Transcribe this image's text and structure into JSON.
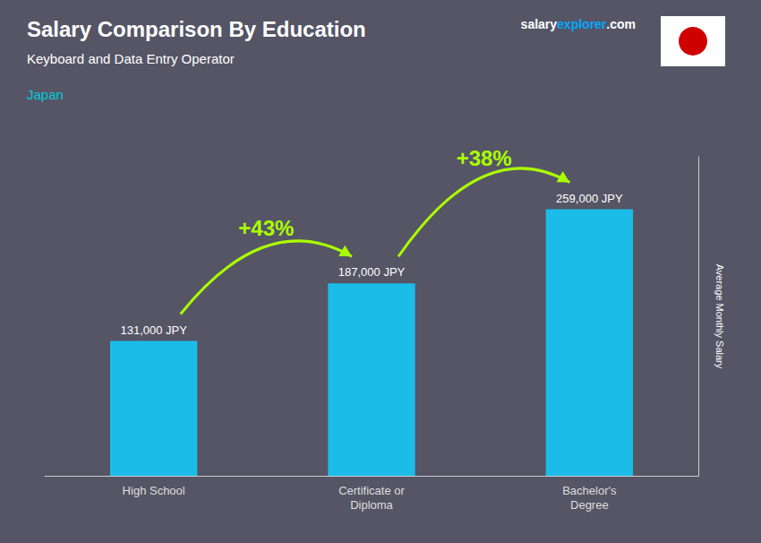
{
  "chart_data": {
    "type": "bar",
    "title": "Salary Comparison By Education",
    "subtitle": "Keyboard and Data Entry Operator",
    "annotations": [
      {
        "text": "Japan",
        "color": "#00ccdd"
      }
    ],
    "site_label": [
      {
        "text": "salary",
        "color": "#ffffff"
      },
      {
        "text": "explorer",
        "color": "#00aaff"
      },
      {
        "text": ".com",
        "color": "#ffffff"
      }
    ],
    "ylabel": "Average Monthly Salary",
    "categories": [
      "High School",
      "Certificate or\nDiploma",
      "Bachelor's\nDegree"
    ],
    "values": [
      131000,
      187000,
      259000
    ],
    "value_labels": [
      "131,000 JPY",
      "187,000 JPY",
      "259,000 JPY"
    ],
    "data_labels": true,
    "color": "#1bbde8",
    "changes": [
      {
        "from": "High School",
        "to": "Certificate or\nDiploma",
        "label": "+43%"
      },
      {
        "from": "Certificate or\nDiploma",
        "to": "Bachelor's\nDegree",
        "label": "+38%"
      }
    ],
    "change_color": "#aaff00",
    "ylim": [
      0,
      310000
    ],
    "tick_labels": false,
    "grid": false
  }
}
